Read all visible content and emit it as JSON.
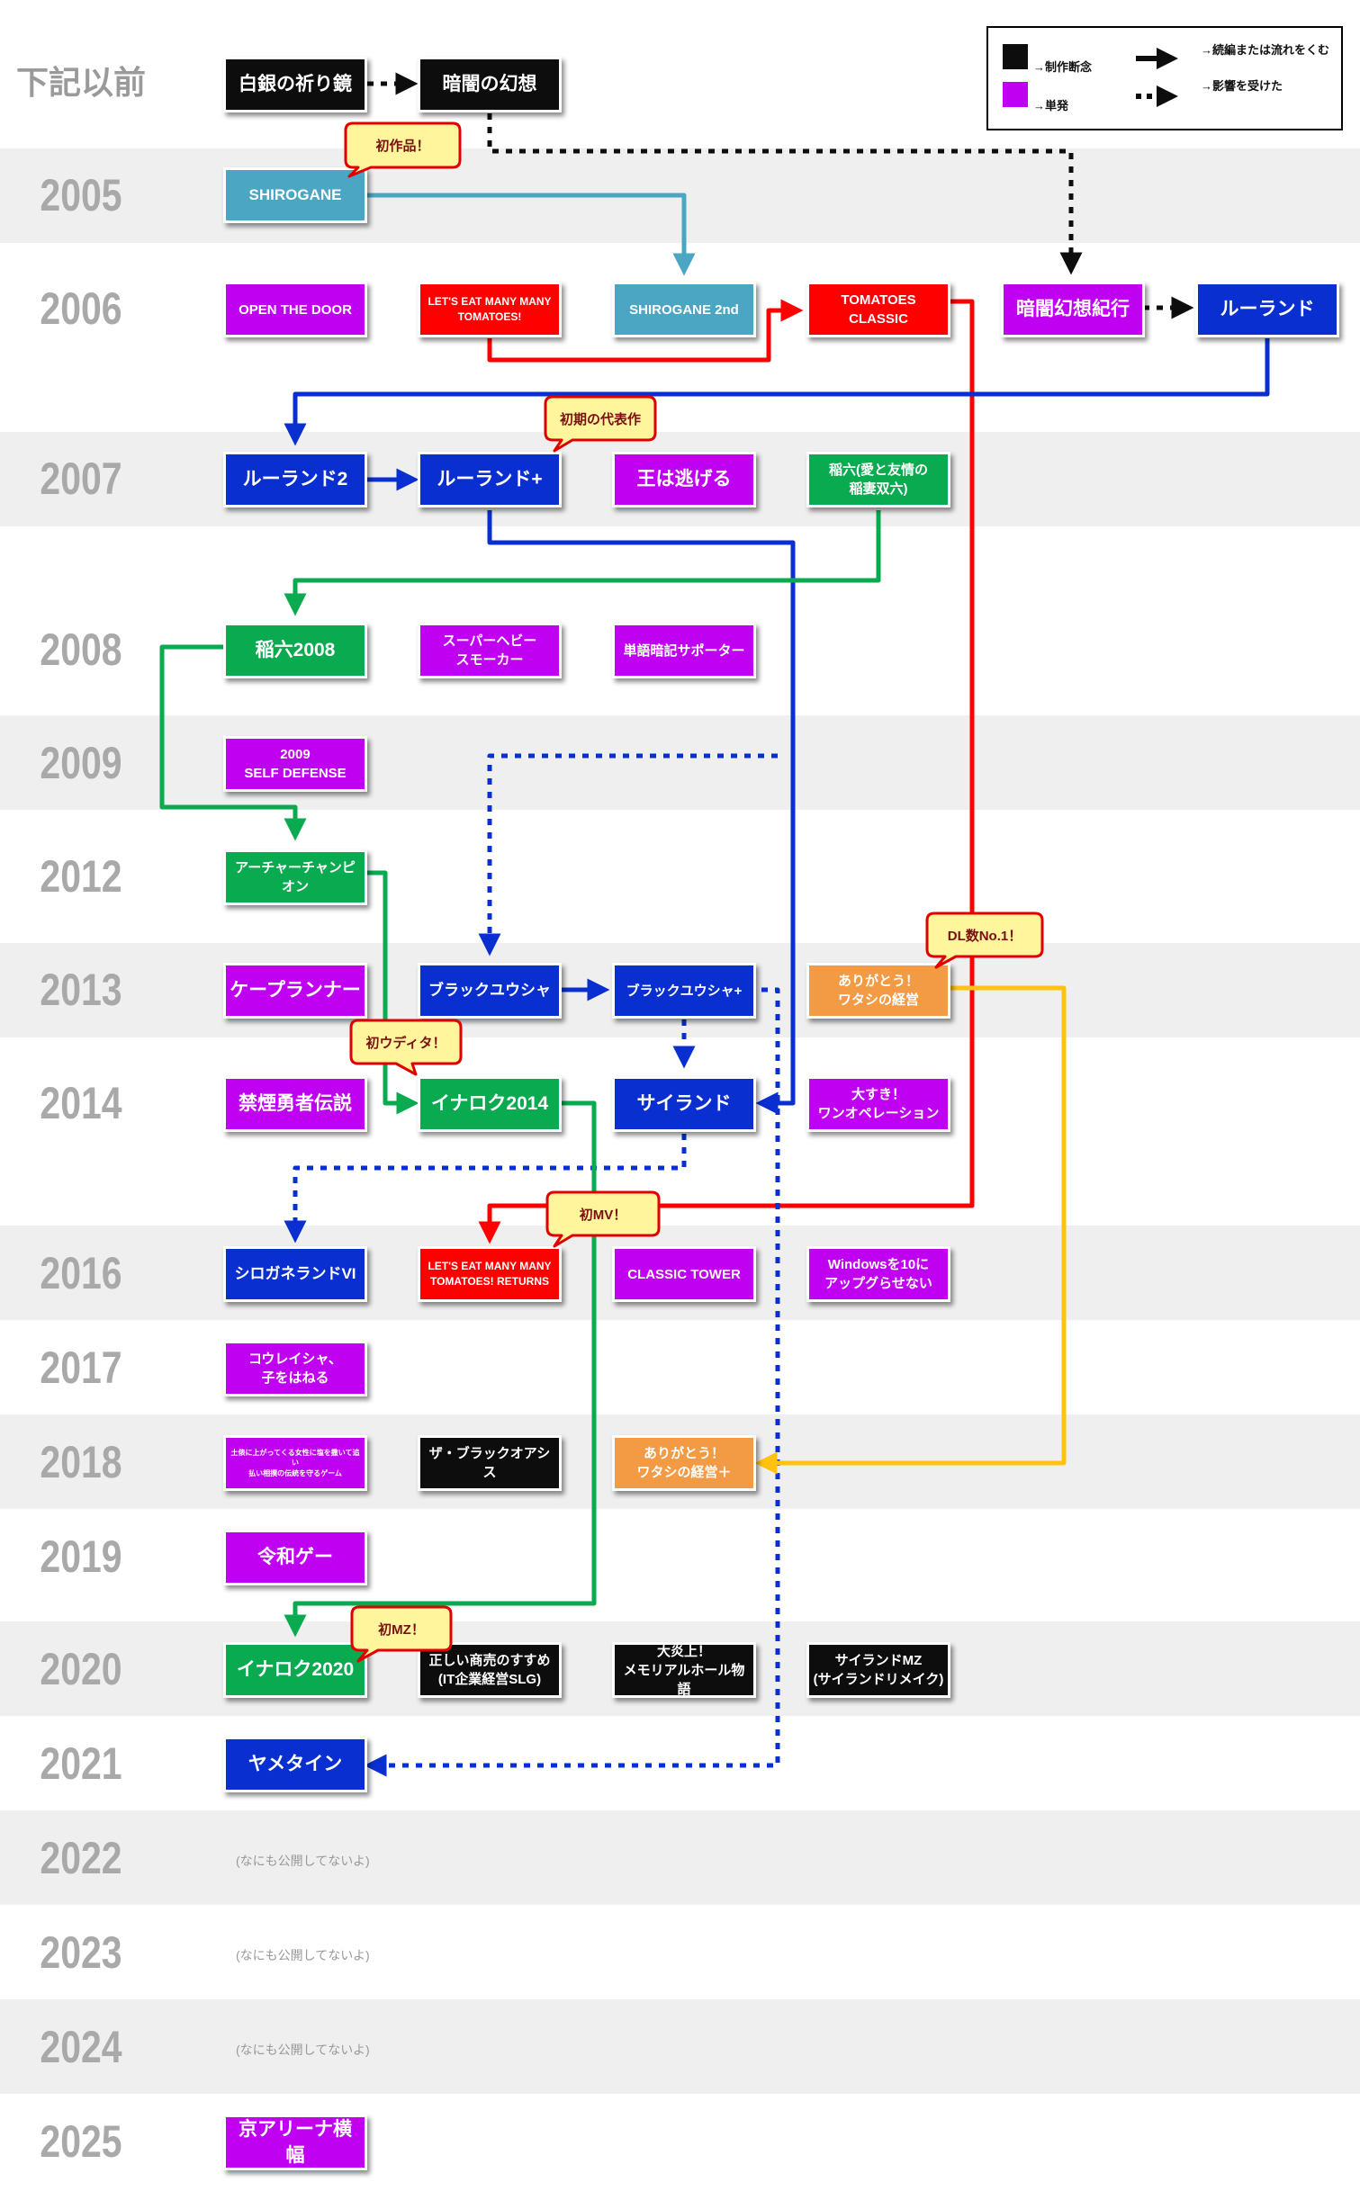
{
  "colors": {
    "black": "#0d0d0d",
    "magenta": "#c000f0",
    "red": "#ff0000",
    "teal": "#4aa6c2",
    "blue": "#0a2fd0",
    "green": "#0aaa50",
    "orange": "#f39a45",
    "yellow": "#ffc20e",
    "bubble_fill": "#fff59d",
    "bubble_border": "#e00000"
  },
  "legend": {
    "discontinued": "→制作断念",
    "standalone": "→単発",
    "sequel": "→続編または流れをくむ",
    "influenced": "→影響を受けた"
  },
  "years": {
    "pre": "下記以前",
    "y2005": "2005",
    "y2006": "2006",
    "y2007": "2007",
    "y2008": "2008",
    "y2009": "2009",
    "y2012": "2012",
    "y2013": "2013",
    "y2014": "2014",
    "y2016": "2016",
    "y2017": "2017",
    "y2018": "2018",
    "y2019": "2019",
    "y2020": "2020",
    "y2021": "2021",
    "y2022": "2022",
    "y2023": "2023",
    "y2024": "2024",
    "y2025": "2025"
  },
  "games": {
    "shirogane_inori": "白銀の祈り鏡",
    "anyami_gensou": "暗闇の幻想",
    "shirogane": "SHIROGANE",
    "open_the_door": "OPEN THE DOOR",
    "lets_eat_tomatoes": "LET'S EAT MANY MANY\nTOMATOES!",
    "shirogane_2nd": "SHIROGANE 2nd",
    "tomatoes_classic": "TOMATOES\nCLASSIC",
    "anyami_kikou": "暗闇幻想紀行",
    "ruland": "ルーランド",
    "ruland2": "ルーランド2",
    "ruland_plus": "ルーランド+",
    "ou_wa_nigeru": "王は逃げる",
    "inaroku_ai": "稲六(愛と友情の\n稲妻双六)",
    "inaroku2008": "稲六2008",
    "super_heavy_smoker": "スーパーヘビー\nスモーカー",
    "tango_supporter": "単語暗記サポーター",
    "self_defense": "2009\nSELF DEFENSE",
    "archer_champion": "アーチャーチャンピオン",
    "cape_runner": "ケープランナー",
    "black_yusha": "ブラックユウシャ",
    "black_yusha_plus": "ブラックユウシャ+",
    "arigatou_watashi": "ありがとう！\nワタシの経営",
    "kinen_yusha": "禁煙勇者伝説",
    "inaroku2014": "イナロク2014",
    "sairand": "サイランド",
    "daisuki_one_op": "大すき！\nワンオペレーション",
    "shirogane_land6": "シロガネランドVI",
    "tomatoes_returns": "LET'S EAT MANY MANY\nTOMATOES! RETURNS",
    "classic_tower": "CLASSIC TOWER",
    "windows10": "Windowsを10に\nアップグらせない",
    "kowareisha": "コウレイシャ、\n子をはねる",
    "dohyo_game": "土俵に上がってくる女性に塩を撒いて追い\n払い相撲の伝統を守るゲーム",
    "black_oasis": "ザ・ブラックオアシス",
    "arigatou_plus": "ありがとう！\nワタシの経営＋",
    "reiwa_game": "令和ゲー",
    "inaroku2020": "イナロク2020",
    "tadashii_shobai": "正しい商売のすすめ\n(IT企業経営SLG)",
    "daienjo": "大炎上！\nメモリアルホール物語",
    "sairand_mz": "サイランドMZ\n(サイランドリメイク)",
    "yametain": "ヤメタイン",
    "kyo_arena": "京アリーナ横幅"
  },
  "notes": {
    "y2022": "(なにも公開してないよ)",
    "y2023": "(なにも公開してないよ)",
    "y2024": "(なにも公開してないよ)"
  },
  "bubbles": {
    "first_work": "初作品！",
    "early_masterpiece": "初期の代表作",
    "dl_no1": "DL数No.1！",
    "first_wodito": "初ウディタ！",
    "first_mv": "初MV！",
    "first_mz": "初MZ！"
  }
}
